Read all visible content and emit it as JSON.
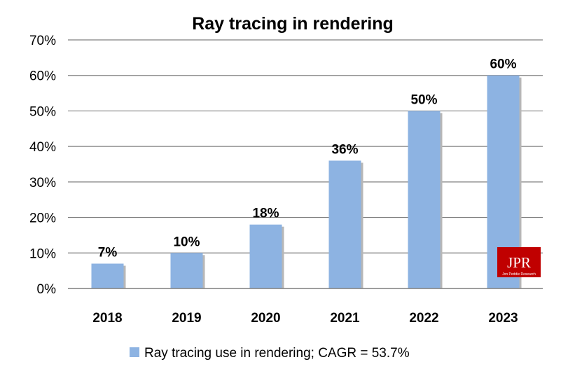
{
  "chart_data": {
    "type": "bar",
    "title": "Ray tracing in rendering",
    "categories": [
      "2018",
      "2019",
      "2020",
      "2021",
      "2022",
      "2023"
    ],
    "series": [
      {
        "name": "Ray tracing use in rendering; CAGR = 53.7%",
        "values": [
          7,
          10,
          18,
          36,
          50,
          60
        ],
        "color": "#8db3e2"
      }
    ],
    "data_labels": [
      "7%",
      "10%",
      "18%",
      "36%",
      "50%",
      "60%"
    ],
    "y_ticks": [
      "0%",
      "10%",
      "20%",
      "30%",
      "40%",
      "50%",
      "60%",
      "70%"
    ],
    "ylim": [
      0,
      70
    ],
    "xlabel": "",
    "ylabel": "",
    "grid": true,
    "legend_position": "bottom"
  },
  "logo": {
    "text": "JPR",
    "subtext": "Jon Peddie Research",
    "color": "#c00000"
  }
}
